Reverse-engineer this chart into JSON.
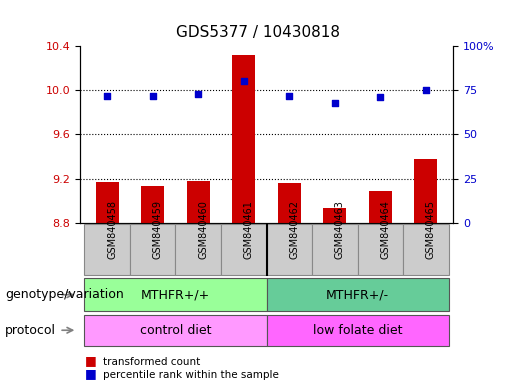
{
  "title": "GDS5377 / 10430818",
  "samples": [
    "GSM840458",
    "GSM840459",
    "GSM840460",
    "GSM840461",
    "GSM840462",
    "GSM840463",
    "GSM840464",
    "GSM840465"
  ],
  "bar_values": [
    9.17,
    9.13,
    9.18,
    10.32,
    9.16,
    8.93,
    9.09,
    9.38
  ],
  "dot_values": [
    72,
    72,
    73,
    80,
    72,
    68,
    71,
    75
  ],
  "bar_bottom": 8.8,
  "ylim_left": [
    8.8,
    10.4
  ],
  "ylim_right": [
    0,
    100
  ],
  "yticks_left": [
    8.8,
    9.2,
    9.6,
    10.0,
    10.4
  ],
  "yticks_right": [
    0,
    25,
    50,
    75,
    100
  ],
  "bar_color": "#cc0000",
  "dot_color": "#0000cc",
  "bg_plot": "#ffffff",
  "bg_xtick": "#cccccc",
  "genotype_groups": [
    {
      "label": "MTHFR+/+",
      "start": 0,
      "end": 4,
      "color": "#99ff99"
    },
    {
      "label": "MTHFR+/-",
      "start": 4,
      "end": 8,
      "color": "#66cc99"
    }
  ],
  "protocol_groups": [
    {
      "label": "control diet",
      "start": 0,
      "end": 4,
      "color": "#ff99ff"
    },
    {
      "label": "low folate diet",
      "start": 4,
      "end": 8,
      "color": "#ff66ff"
    }
  ],
  "legend_items": [
    {
      "label": "transformed count",
      "color": "#cc0000"
    },
    {
      "label": "percentile rank within the sample",
      "color": "#0000cc"
    }
  ],
  "left_labels": [
    "genotype/variation",
    "protocol"
  ],
  "title_fontsize": 11,
  "tick_fontsize": 8,
  "label_fontsize": 9
}
